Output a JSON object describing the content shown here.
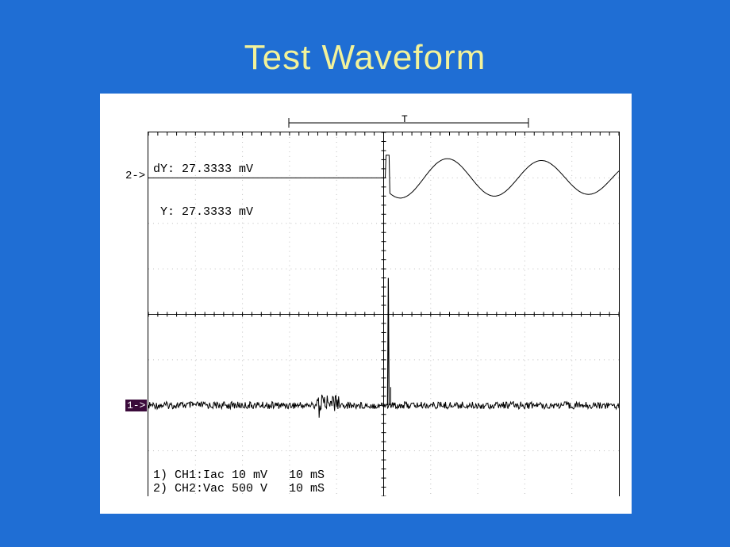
{
  "slide": {
    "title": "Test Waveform",
    "bg_color": "#1f6ed4",
    "title_color": "#f2f29a",
    "title_fontsize": 44
  },
  "scope": {
    "frame_bg": "#ffffff",
    "plot": {
      "width_divs": 10,
      "height_divs": 8,
      "grid_color": "#bfbfbf",
      "center_line_color": "#000000",
      "minor_ticks_per_div": 5,
      "background": "#ffffff"
    },
    "cursor_readout": {
      "line1": "dY: 27.3333 mV",
      "line2": " Y: 27.3333 mV"
    },
    "time_marker_label": "T",
    "channels": {
      "ch2": {
        "indicator": "2->",
        "baseline_div_from_top": 1.0,
        "type": "line",
        "color": "#000000",
        "linewidth": 1,
        "description": "flat then damped sine starting at trigger",
        "flat_until_div": 5.05,
        "sine_amp_divs": 0.45,
        "sine_period_divs": 2.0,
        "sine_decay": 0.05,
        "trigger_spike_height_divs": 0.5
      },
      "ch1": {
        "indicator": "1->",
        "indicator_bg": "#3a0a3a",
        "indicator_fg": "#ffffff",
        "baseline_div_from_top": 6.0,
        "type": "noisy-impulse",
        "color": "#000000",
        "linewidth": 1,
        "noise_amp_divs": 0.08,
        "impulse_at_div": 5.1,
        "impulse_height_divs": 2.8,
        "burst_at_div": 3.8,
        "burst_amp_divs": 0.2
      }
    },
    "footer": {
      "line1": "1) CH1:Iac 10 mV   10 mS",
      "line2": "2) CH2:Vac 500 V   10 mS"
    }
  }
}
